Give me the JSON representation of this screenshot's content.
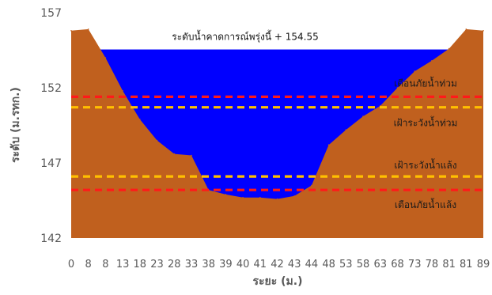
{
  "chart_data": {
    "type": "area",
    "title": "",
    "xlabel": "ระยะ (ม.)",
    "ylabel": "ระดับ (ม.รทก.)",
    "ylim": [
      142,
      157
    ],
    "yticks": [
      "142",
      "147",
      "152",
      "157"
    ],
    "grid": false,
    "categories": [
      "0",
      "8",
      "8",
      "13",
      "18",
      "23",
      "28",
      "33",
      "38",
      "39",
      "40",
      "41",
      "42",
      "43",
      "44",
      "48",
      "53",
      "58",
      "63",
      "68",
      "73",
      "78",
      "81",
      "81",
      "89"
    ],
    "series": [
      {
        "kind": "ground",
        "color": "#c0601e",
        "values": [
          155.8,
          155.9,
          154.0,
          151.8,
          149.9,
          148.5,
          147.6,
          147.5,
          145.2,
          144.9,
          144.7,
          144.7,
          144.6,
          144.8,
          145.5,
          148.2,
          149.2,
          150.1,
          150.8,
          152.0,
          153.1,
          153.8,
          154.6,
          155.9,
          155.8
        ]
      }
    ],
    "water": {
      "label_prefix": "ระดับน้ำคาดการณ์พรุ่งนี้ +",
      "level_text": "154.55",
      "level": 154.55,
      "color": "#0000ff"
    },
    "reference_lines": [
      {
        "label": "เตือนภัยน้ำท่วม",
        "value": 151.4,
        "color": "#ff1a1a"
      },
      {
        "label": "เฝ้าระวังน้ำท่วม",
        "value": 150.7,
        "color": "#ffc000"
      },
      {
        "label": "เฝ้าระวังน้ำแล้ง",
        "value": 146.1,
        "color": "#ffc000"
      },
      {
        "label": "เตือนภัยน้ำแล้ง",
        "value": 145.2,
        "color": "#ff1a1a"
      }
    ]
  }
}
